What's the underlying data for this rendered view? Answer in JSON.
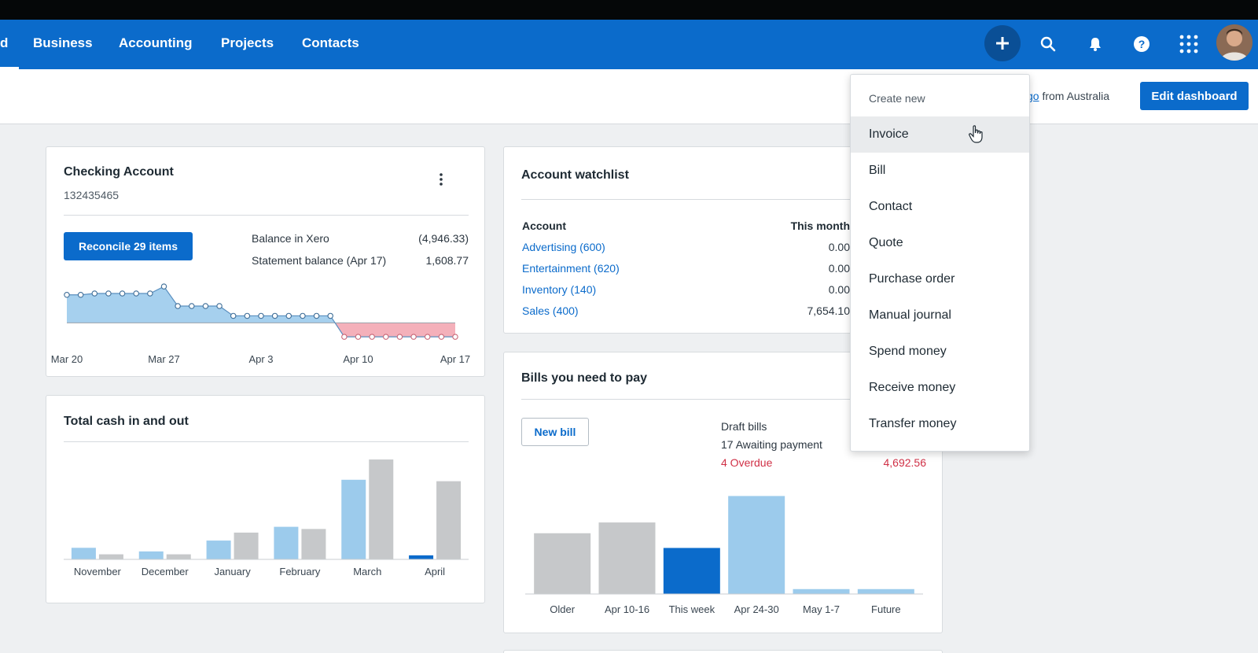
{
  "nav": {
    "partial_item": "d",
    "items": [
      "Business",
      "Accounting",
      "Projects",
      "Contacts"
    ]
  },
  "header": {
    "org_link_partial": "go",
    "org_from": "from Australia",
    "edit_dashboard": "Edit dashboard"
  },
  "checking": {
    "title": "Checking Account",
    "number": "132435465",
    "reconcile_label": "Reconcile 29 items",
    "balance_xero_label": "Balance in Xero",
    "balance_xero_value": "(4,946.33)",
    "statement_label": "Statement balance (Apr 17)",
    "statement_value": "1,608.77",
    "x_labels": [
      "Mar 20",
      "Mar 27",
      "Apr 3",
      "Apr 10",
      "Apr 17"
    ]
  },
  "cash": {
    "title": "Total cash in and out"
  },
  "watchlist": {
    "title": "Account watchlist",
    "col_account": "Account",
    "col_month": "This month",
    "rows": [
      {
        "account": "Advertising (600)",
        "month": "0.00"
      },
      {
        "account": "Entertainment (620)",
        "month": "0.00"
      },
      {
        "account": "Inventory (140)",
        "month": "0.00"
      },
      {
        "account": "Sales (400)",
        "month": "7,654.10"
      }
    ]
  },
  "bills": {
    "title": "Bills you need to pay",
    "new_bill": "New bill",
    "draft": "Draft bills",
    "awaiting": "17 Awaiting payment",
    "overdue": "4 Overdue",
    "overdue_amount": "4,692.56"
  },
  "dropdown": {
    "header": "Create new",
    "items": [
      "Invoice",
      "Bill",
      "Contact",
      "Quote",
      "Purchase order",
      "Manual journal",
      "Spend money",
      "Receive money",
      "Transfer money"
    ]
  },
  "colors": {
    "brand": "#0b6bcb",
    "in_bar": "#9ccbec",
    "out_bar": "#c6c8ca",
    "overdue": "#d03046",
    "negative_fill": "#f3a7b2",
    "positive_fill": "#9ccbec"
  },
  "chart_data": [
    {
      "type": "area",
      "title": "Checking Account balance",
      "x": [
        "Mar 20",
        "Mar 21",
        "Mar 22",
        "Mar 23",
        "Mar 24",
        "Mar 25",
        "Mar 26",
        "Mar 27",
        "Mar 28",
        "Mar 29",
        "Mar 30",
        "Mar 31",
        "Apr 1",
        "Apr 2",
        "Apr 3",
        "Apr 4",
        "Apr 5",
        "Apr 6",
        "Apr 7",
        "Apr 8",
        "Apr 9",
        "Apr 10",
        "Apr 11",
        "Apr 12",
        "Apr 13",
        "Apr 14",
        "Apr 15",
        "Apr 16",
        "Apr 17"
      ],
      "xticks": [
        "Mar 20",
        "Mar 27",
        "Apr 3",
        "Apr 10",
        "Apr 17"
      ],
      "values": [
        2000,
        2000,
        2100,
        2100,
        2100,
        2100,
        2100,
        2600,
        1200,
        1200,
        1200,
        1200,
        500,
        500,
        500,
        500,
        500,
        500,
        500,
        500,
        -1000,
        -1000,
        -1000,
        -1000,
        -1000,
        -1000,
        -1000,
        -1000,
        -1000
      ],
      "ylim": [
        -1500,
        3000
      ]
    },
    {
      "type": "bar",
      "title": "Total cash in and out",
      "categories": [
        "November",
        "December",
        "January",
        "February",
        "March",
        "April"
      ],
      "series": [
        {
          "name": "Cash in",
          "values": [
            800,
            550,
            1300,
            2250,
            5500,
            280
          ]
        },
        {
          "name": "Cash out",
          "values": [
            350,
            350,
            1850,
            2100,
            6900,
            5400
          ]
        }
      ],
      "ylim": [
        0,
        7500
      ]
    },
    {
      "type": "bar",
      "title": "Bills you need to pay",
      "categories": [
        "Older",
        "Apr 10-16",
        "This week",
        "Apr 24-30",
        "May 1-7",
        "Future"
      ],
      "values": [
        3100,
        3650,
        2350,
        5000,
        250,
        250
      ],
      "highlight": "This week",
      "ylim": [
        0,
        5500
      ]
    }
  ]
}
